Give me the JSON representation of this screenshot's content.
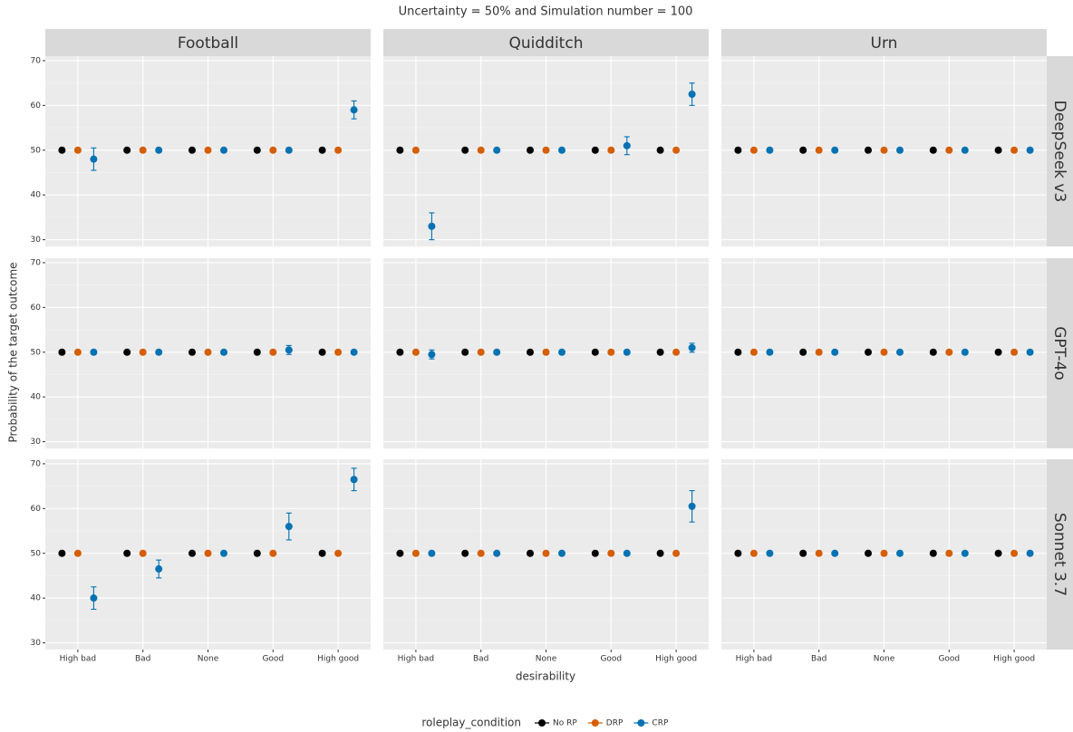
{
  "chart_data": {
    "type": "pointrange",
    "title": "Uncertainty = 50% and Simulation number = 100",
    "x_label": "desirability",
    "y_label": "Probability of the target outcome",
    "legend_title": "roleplay_condition",
    "categories": [
      "High bad",
      "Bad",
      "None",
      "Good",
      "High good"
    ],
    "columns": [
      "Football",
      "Quidditch",
      "Urn"
    ],
    "rows": [
      "DeepSeek v3",
      "GPT-4o",
      "Sonnet 3.7"
    ],
    "series": [
      {
        "name": "No RP",
        "color": "#000000"
      },
      {
        "name": "DRP",
        "color": "#d55e00"
      },
      {
        "name": "CRP",
        "color": "#0072b2"
      }
    ],
    "ylim": [
      28.5,
      71
    ],
    "yticks": [
      30,
      40,
      50,
      60,
      70
    ],
    "grid": true,
    "panels": [
      [
        {
          "series": [
            {
              "values": [
                50,
                50,
                50,
                50,
                50
              ]
            },
            {
              "values": [
                50,
                50,
                50,
                50,
                50
              ]
            },
            {
              "values": [
                48,
                50,
                50,
                50,
                59
              ],
              "errors": [
                2.5,
                null,
                null,
                null,
                2
              ]
            }
          ]
        },
        {
          "series": [
            {
              "values": [
                50,
                50,
                50,
                50,
                50
              ]
            },
            {
              "values": [
                50,
                50,
                50,
                50,
                50
              ]
            },
            {
              "values": [
                33,
                50,
                50,
                51,
                62.5
              ],
              "errors": [
                3,
                null,
                null,
                2,
                2.5
              ]
            }
          ]
        },
        {
          "series": [
            {
              "values": [
                50,
                50,
                50,
                50,
                50
              ]
            },
            {
              "values": [
                50,
                50,
                50,
                50,
                50
              ]
            },
            {
              "values": [
                50,
                50,
                50,
                50,
                50
              ],
              "errors": [
                null,
                null,
                null,
                null,
                null
              ]
            }
          ]
        }
      ],
      [
        {
          "series": [
            {
              "values": [
                50,
                50,
                50,
                50,
                50
              ]
            },
            {
              "values": [
                50,
                50,
                50,
                50,
                50
              ]
            },
            {
              "values": [
                50,
                50,
                50,
                50.5,
                50
              ],
              "errors": [
                null,
                null,
                null,
                1,
                null
              ]
            }
          ]
        },
        {
          "series": [
            {
              "values": [
                50,
                50,
                50,
                50,
                50
              ]
            },
            {
              "values": [
                50,
                50,
                50,
                50,
                50
              ]
            },
            {
              "values": [
                49.5,
                50,
                50,
                50,
                51
              ],
              "errors": [
                1,
                null,
                null,
                null,
                1
              ]
            }
          ]
        },
        {
          "series": [
            {
              "values": [
                50,
                50,
                50,
                50,
                50
              ]
            },
            {
              "values": [
                50,
                50,
                50,
                50,
                50
              ]
            },
            {
              "values": [
                50,
                50,
                50,
                50,
                50
              ],
              "errors": [
                null,
                null,
                null,
                null,
                null
              ]
            }
          ]
        }
      ],
      [
        {
          "series": [
            {
              "values": [
                50,
                50,
                50,
                50,
                50
              ]
            },
            {
              "values": [
                50,
                50,
                50,
                50,
                50
              ]
            },
            {
              "values": [
                40,
                46.5,
                50,
                56,
                66.5
              ],
              "errors": [
                2.5,
                2,
                null,
                3,
                2.5
              ]
            }
          ]
        },
        {
          "series": [
            {
              "values": [
                50,
                50,
                50,
                50,
                50
              ]
            },
            {
              "values": [
                50,
                50,
                50,
                50,
                50
              ]
            },
            {
              "values": [
                50,
                50,
                50,
                50,
                60.5
              ],
              "errors": [
                null,
                null,
                null,
                null,
                3.5
              ]
            }
          ]
        },
        {
          "series": [
            {
              "values": [
                50,
                50,
                50,
                50,
                50
              ]
            },
            {
              "values": [
                50,
                50,
                50,
                50,
                50
              ]
            },
            {
              "values": [
                50,
                50,
                50,
                50,
                50
              ],
              "errors": [
                null,
                null,
                null,
                null,
                null
              ]
            }
          ]
        }
      ]
    ]
  }
}
